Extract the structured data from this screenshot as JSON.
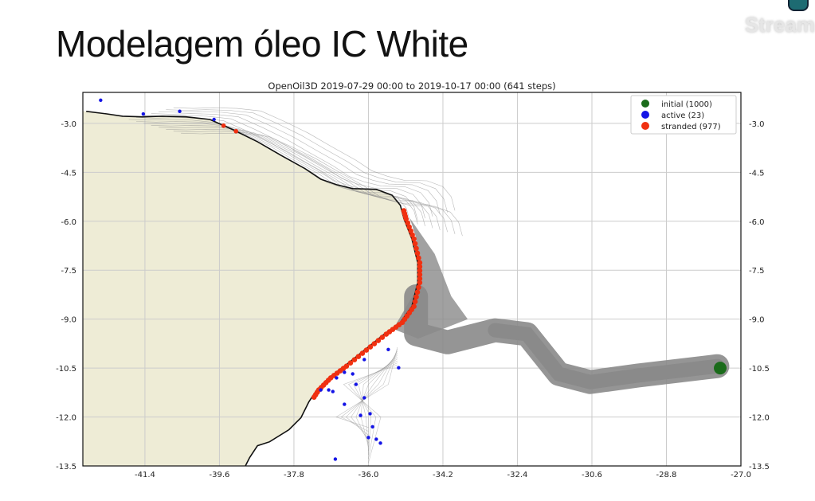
{
  "slide": {
    "title": "Modelagem óleo IC White",
    "brand": "Stream"
  },
  "chart_data": {
    "type": "scatter",
    "title": "OpenOil3D  2019-07-29 00:00 to 2019-10-17 00:00 (641 steps)",
    "xlim": [
      -42.9,
      -27.0
    ],
    "ylim": [
      -13.5,
      -2.05
    ],
    "xticks": [
      "-41.4",
      "-39.6",
      "-37.8",
      "-36.0",
      "-34.2",
      "-32.4",
      "-30.6",
      "-28.8",
      "-27.0"
    ],
    "xtick_values": [
      -41.4,
      -39.6,
      -37.8,
      -36.0,
      -34.2,
      -32.4,
      -30.6,
      -28.8,
      -27.0
    ],
    "yticks": [
      "-3.0",
      "-4.5",
      "-6.0",
      "-7.5",
      "-9.0",
      "-10.5",
      "-12.0",
      "-13.5"
    ],
    "ytick_values": [
      -3.0,
      -4.5,
      -6.0,
      -7.5,
      -9.0,
      -10.5,
      -12.0,
      -13.5
    ],
    "grid": true,
    "legend_position": "top-right",
    "legend": [
      {
        "label": "initial (1000)",
        "color": "#1a6b1a"
      },
      {
        "label": "active (23)",
        "color": "#1414e6"
      },
      {
        "label": "stranded (977)",
        "color": "#f03010"
      }
    ],
    "colors": {
      "land": "#eeecd6",
      "trajectory": "#8a8a8a",
      "coast": "#111111"
    },
    "coastline": [
      [
        -42.82,
        -2.63
      ],
      [
        -42.32,
        -2.71
      ],
      [
        -41.94,
        -2.78
      ],
      [
        -41.46,
        -2.8
      ],
      [
        -40.98,
        -2.78
      ],
      [
        -40.41,
        -2.8
      ],
      [
        -39.83,
        -2.88
      ],
      [
        -39.26,
        -3.2
      ],
      [
        -38.68,
        -3.56
      ],
      [
        -38.11,
        -3.98
      ],
      [
        -37.53,
        -4.39
      ],
      [
        -37.15,
        -4.71
      ],
      [
        -36.77,
        -4.88
      ],
      [
        -36.38,
        -5.0
      ],
      [
        -35.81,
        -5.02
      ],
      [
        -35.43,
        -5.2
      ],
      [
        -35.23,
        -5.51
      ],
      [
        -35.14,
        -5.93
      ],
      [
        -34.95,
        -6.54
      ],
      [
        -34.81,
        -7.27
      ],
      [
        -34.81,
        -7.88
      ],
      [
        -34.95,
        -8.61
      ],
      [
        -35.23,
        -9.1
      ],
      [
        -35.62,
        -9.46
      ],
      [
        -36.1,
        -9.95
      ],
      [
        -36.58,
        -10.44
      ],
      [
        -36.96,
        -10.8
      ],
      [
        -37.25,
        -11.17
      ],
      [
        -37.44,
        -11.54
      ],
      [
        -37.63,
        -12.02
      ],
      [
        -37.92,
        -12.39
      ],
      [
        -38.39,
        -12.76
      ],
      [
        -38.68,
        -12.88
      ],
      [
        -38.87,
        -13.24
      ],
      [
        -38.97,
        -13.49
      ]
    ],
    "trajectory_band": [
      [
        -34.85,
        -8.3
      ],
      [
        -34.85,
        -9.46
      ],
      [
        -34.09,
        -9.71
      ],
      [
        -32.94,
        -9.34
      ],
      [
        -32.17,
        -9.46
      ],
      [
        -31.4,
        -10.68
      ],
      [
        -30.64,
        -10.93
      ],
      [
        -29.49,
        -10.73
      ],
      [
        -27.57,
        -10.44
      ]
    ],
    "initial": [
      [
        -27.5,
        -10.5
      ]
    ],
    "active": [
      [
        -42.47,
        -2.29
      ],
      [
        -41.44,
        -2.71
      ],
      [
        -40.56,
        -2.63
      ],
      [
        -39.73,
        -2.88
      ],
      [
        -35.52,
        -9.93
      ],
      [
        -35.27,
        -10.49
      ],
      [
        -36.1,
        -10.24
      ],
      [
        -36.38,
        -10.68
      ],
      [
        -36.58,
        -10.63
      ],
      [
        -36.77,
        -10.8
      ],
      [
        -36.96,
        -11.17
      ],
      [
        -37.15,
        -11.17
      ],
      [
        -36.86,
        -11.22
      ],
      [
        -36.58,
        -11.61
      ],
      [
        -36.1,
        -11.41
      ],
      [
        -36.19,
        -11.95
      ],
      [
        -35.96,
        -11.9
      ],
      [
        -36.0,
        -12.63
      ],
      [
        -35.81,
        -12.68
      ],
      [
        -35.71,
        -12.8
      ],
      [
        -36.8,
        -13.29
      ],
      [
        -35.9,
        -12.3
      ],
      [
        -36.3,
        -11.0
      ]
    ],
    "stranded_extra": [
      [
        -39.5,
        -3.07
      ],
      [
        -39.2,
        -3.24
      ]
    ]
  }
}
